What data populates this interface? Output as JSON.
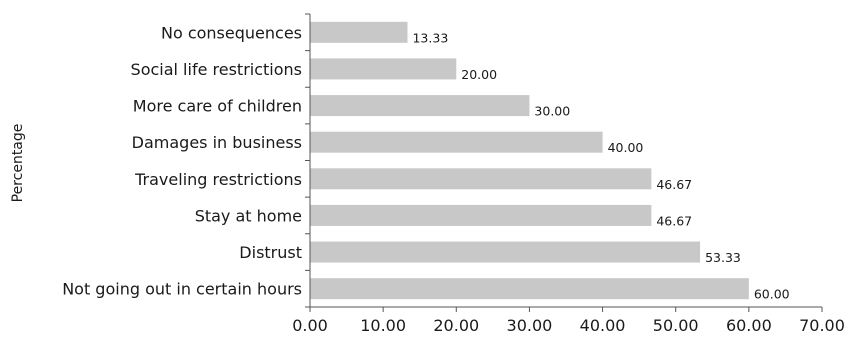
{
  "chart_data": {
    "type": "bar",
    "orientation": "horizontal",
    "categories": [
      "No consequences",
      "Social life restrictions",
      "More care of children",
      "Damages in business",
      "Traveling restrictions",
      "Stay at home",
      "Distrust",
      "Not going out in certain hours"
    ],
    "values": [
      13.33,
      20.0,
      30.0,
      40.0,
      46.67,
      46.67,
      53.33,
      60.0
    ],
    "value_labels": [
      "13.33",
      "20.00",
      "30.00",
      "40.00",
      "46.67",
      "46.67",
      "53.33",
      "60.00"
    ],
    "ylabel": "Percentage",
    "xlim": [
      0,
      70
    ],
    "xticks": [
      0,
      10,
      20,
      30,
      40,
      50,
      60,
      70
    ],
    "xtick_labels": [
      "0.00",
      "10.00",
      "20.00",
      "30.00",
      "40.00",
      "50.00",
      "60.00",
      "70.00"
    ],
    "grid": false,
    "bar_color": "#c8c8c8",
    "axis_color": "#555555"
  }
}
